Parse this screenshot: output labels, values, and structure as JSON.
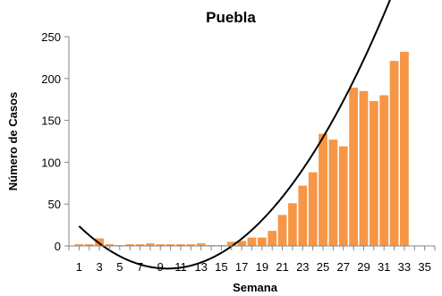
{
  "chart_data": {
    "type": "bar",
    "title": "Puebla",
    "xlabel": "Semana",
    "ylabel": "Número de Casos",
    "x": [
      1,
      2,
      3,
      4,
      5,
      6,
      7,
      8,
      9,
      10,
      11,
      12,
      13,
      14,
      15,
      16,
      17,
      18,
      19,
      20,
      21,
      22,
      23,
      24,
      25,
      26,
      27,
      28,
      29,
      30,
      31,
      32,
      33
    ],
    "series": [
      {
        "values": [
          2,
          2,
          9,
          2,
          1,
          2,
          2,
          3,
          2,
          2,
          2,
          2,
          3,
          1,
          1,
          5,
          6,
          10,
          10,
          18,
          37,
          51,
          72,
          88,
          134,
          127,
          119,
          189,
          185,
          173,
          180,
          221,
          232
        ],
        "color": "#f79646"
      }
    ],
    "trendline": {
      "type": "polynomial-2",
      "color": "#000000",
      "coefficients": [
        0.67,
        -13.0,
        36.0
      ]
    },
    "xlim": [
      0,
      36
    ],
    "ylim": [
      0,
      250
    ],
    "xticks": [
      1,
      3,
      5,
      7,
      9,
      11,
      13,
      15,
      17,
      19,
      21,
      23,
      25,
      27,
      29,
      31,
      33,
      35
    ],
    "yticks": [
      0,
      50,
      100,
      150,
      200,
      250
    ],
    "grid": false,
    "legend": "none"
  }
}
